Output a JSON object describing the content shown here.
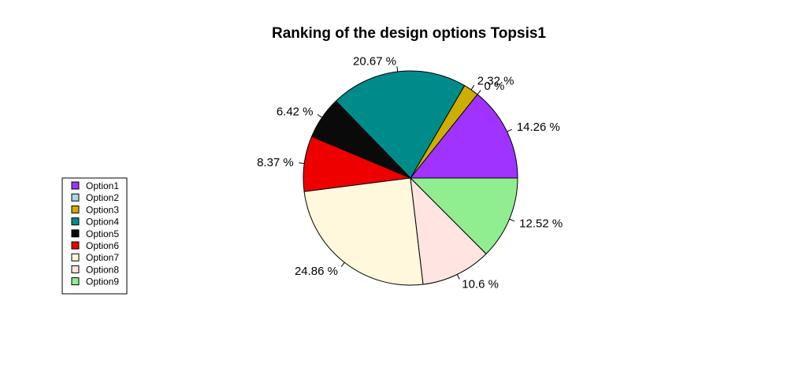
{
  "chart_data": {
    "type": "pie",
    "title": "Ranking of the design options Topsis1",
    "slices": [
      {
        "name": "Option1",
        "value": 14.26,
        "label": "14.26 %",
        "color": "#A033FF"
      },
      {
        "name": "Option2",
        "value": 0.0,
        "label": "0 %",
        "color": "#ADD8E6"
      },
      {
        "name": "Option3",
        "value": 2.32,
        "label": "2.32 %",
        "color": "#CDAD00"
      },
      {
        "name": "Option4",
        "value": 20.67,
        "label": "20.67 %",
        "color": "#008B8B"
      },
      {
        "name": "Option5",
        "value": 6.42,
        "label": "6.42 %",
        "color": "#0A0A0A"
      },
      {
        "name": "Option6",
        "value": 8.37,
        "label": "8.37 %",
        "color": "#EE0000"
      },
      {
        "name": "Option7",
        "value": 24.86,
        "label": "24.86 %",
        "color": "#FFF8DC"
      },
      {
        "name": "Option8",
        "value": 10.6,
        "label": "10.6 %",
        "color": "#FFE4E1"
      },
      {
        "name": "Option9",
        "value": 12.52,
        "label": "12.52 %",
        "color": "#90EE90"
      }
    ],
    "legend": {
      "placement": "left",
      "entries": [
        "Option1",
        "Option2",
        "Option3",
        "Option4",
        "Option5",
        "Option6",
        "Option7",
        "Option8",
        "Option9"
      ]
    }
  }
}
